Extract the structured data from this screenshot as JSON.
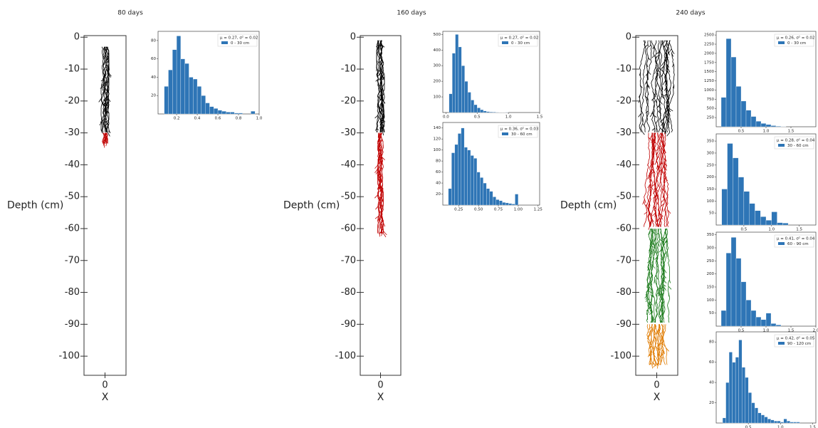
{
  "chart_data": [
    {
      "type": "root",
      "title": "80 days",
      "ylabel": "Depth (cm)",
      "xlabel": "X",
      "xlim": [
        -1,
        1
      ],
      "xticks": [
        0
      ],
      "ylim": [
        -106,
        0.5
      ],
      "yticks": [
        0,
        -10,
        -20,
        -30,
        -40,
        -50,
        -60,
        -70,
        -80,
        -90,
        -100
      ],
      "segments": [
        {
          "color": "#000000",
          "from": -3,
          "to": -30
        },
        {
          "color": "#c00000",
          "from": -30,
          "to": -34
        }
      ]
    },
    {
      "type": "histogram",
      "annotation": "μ = 0.27, σ² = 0.02",
      "xlim": [
        0.02,
        1.0
      ],
      "xticks": [
        0.2,
        0.4,
        0.6,
        0.8,
        {
          "value": 1,
          "label": "1.0"
        }
      ],
      "ylim": [
        0,
        90
      ],
      "yticks": [
        20,
        40,
        60,
        80
      ],
      "bins": [
        0.08,
        0.12,
        0.16,
        0.2,
        0.24,
        0.28,
        0.32,
        0.36,
        0.4,
        0.44,
        0.48,
        0.52,
        0.56,
        0.6,
        0.64,
        0.68,
        0.72,
        0.76,
        0.8,
        0.84,
        0.88,
        0.92,
        0.96
      ],
      "series": [
        {
          "name": "0 - 30 cm",
          "color": "#2e75b6",
          "values": [
            30,
            48,
            70,
            85,
            60,
            55,
            40,
            38,
            30,
            20,
            12,
            8,
            6,
            4,
            3,
            2,
            2,
            1,
            1,
            0,
            0,
            3
          ]
        }
      ]
    },
    {
      "type": "root",
      "title": "160 days",
      "ylabel": "Depth (cm)",
      "xlabel": "X",
      "xlim": [
        -1,
        1
      ],
      "xticks": [
        0
      ],
      "ylim": [
        -106,
        0.5
      ],
      "yticks": [
        0,
        -10,
        -20,
        -30,
        -40,
        -50,
        -60,
        -70,
        -80,
        -90,
        -100
      ],
      "segments": [
        {
          "color": "#000000",
          "from": -1,
          "to": -30
        },
        {
          "color": "#c00000",
          "from": -30,
          "to": -62
        }
      ]
    },
    {
      "type": "histogram",
      "annotation": "μ = 0.27, σ² = 0.02",
      "xlim": [
        -0.05,
        1.5
      ],
      "xticks": [
        {
          "value": 0,
          "label": "0.0"
        },
        0.5,
        {
          "value": 1,
          "label": "1.0"
        },
        1.5
      ],
      "ylim": [
        0,
        520
      ],
      "yticks": [
        100,
        200,
        300,
        400,
        500
      ],
      "bins": [
        0.05,
        0.1,
        0.15,
        0.2,
        0.25,
        0.3,
        0.35,
        0.4,
        0.45,
        0.5,
        0.55,
        0.6,
        0.65,
        0.7,
        0.75,
        0.8,
        0.85,
        0.9,
        0.95,
        1.0
      ],
      "series": [
        {
          "name": "0 - 30 cm",
          "color": "#2e75b6",
          "values": [
            120,
            380,
            500,
            420,
            300,
            200,
            130,
            80,
            50,
            30,
            18,
            10,
            6,
            4,
            3,
            2,
            1,
            1,
            2
          ]
        }
      ]
    },
    {
      "type": "histogram",
      "annotation": "μ = 0.36, σ² = 0.03",
      "xlim": [
        0.05,
        1.27
      ],
      "xticks": [
        0.25,
        {
          "value": 0.5,
          "label": "0.50"
        },
        0.75,
        {
          "value": 1,
          "label": "1.00"
        },
        1.25
      ],
      "ylim": [
        0,
        150
      ],
      "yticks": [
        20,
        40,
        60,
        80,
        100,
        120,
        140
      ],
      "bins": [
        0.12,
        0.16,
        0.2,
        0.24,
        0.28,
        0.32,
        0.36,
        0.4,
        0.44,
        0.48,
        0.52,
        0.56,
        0.6,
        0.64,
        0.68,
        0.72,
        0.76,
        0.8,
        0.84,
        0.88,
        0.92,
        0.96,
        1.0
      ],
      "series": [
        {
          "name": "30 - 60 cm",
          "color": "#2e75b6",
          "values": [
            30,
            95,
            110,
            130,
            140,
            105,
            100,
            90,
            85,
            60,
            50,
            40,
            30,
            25,
            15,
            10,
            8,
            5,
            4,
            3,
            2,
            20
          ]
        }
      ]
    },
    {
      "type": "root",
      "title": "240 days",
      "ylabel": "Depth (cm)",
      "xlabel": "X",
      "xlim": [
        -1,
        1
      ],
      "xticks": [
        0
      ],
      "ylim": [
        -106,
        0.5
      ],
      "yticks": [
        0,
        -10,
        -20,
        -30,
        -40,
        -50,
        -60,
        -70,
        -80,
        -90,
        -100
      ],
      "segments": [
        {
          "color": "#000000",
          "from": -1,
          "to": -30
        },
        {
          "color": "#c00000",
          "from": -30,
          "to": -60
        },
        {
          "color": "#1a7a1a",
          "from": -60,
          "to": -90
        },
        {
          "color": "#e07b00",
          "from": -90,
          "to": -103
        }
      ]
    },
    {
      "type": "histogram",
      "annotation": "μ = 0.26, σ² = 0.02",
      "xlim": [
        0,
        2.0
      ],
      "xticks": [
        0.5,
        {
          "value": 1,
          "label": "1.0"
        },
        1.5
      ],
      "ylim": [
        0,
        2600
      ],
      "yticks": [
        250,
        500,
        750,
        1000,
        1250,
        1500,
        1750,
        2000,
        2250,
        2500
      ],
      "bins": [
        0.1,
        0.2,
        0.3,
        0.4,
        0.5,
        0.6,
        0.7,
        0.8,
        0.9,
        1.0,
        1.1,
        1.2,
        1.3,
        1.4
      ],
      "series": [
        {
          "name": "0 - 30 cm",
          "color": "#2e75b6",
          "values": [
            800,
            2400,
            1900,
            1100,
            700,
            450,
            280,
            150,
            90,
            60,
            30,
            15,
            8
          ]
        }
      ]
    },
    {
      "type": "histogram",
      "annotation": "μ = 0.28, σ² = 0.04",
      "xlim": [
        0,
        1.8
      ],
      "xticks": [
        0.5,
        {
          "value": 1,
          "label": "1.0"
        },
        1.5
      ],
      "ylim": [
        0,
        380
      ],
      "yticks": [
        50,
        100,
        150,
        200,
        250,
        300,
        350
      ],
      "bins": [
        0.1,
        0.2,
        0.3,
        0.4,
        0.5,
        0.6,
        0.7,
        0.8,
        0.9,
        1.0,
        1.1,
        1.2,
        1.3
      ],
      "series": [
        {
          "name": "30 - 60 cm",
          "color": "#2e75b6",
          "values": [
            150,
            340,
            280,
            200,
            140,
            90,
            60,
            35,
            20,
            55,
            10,
            8
          ]
        }
      ]
    },
    {
      "type": "histogram",
      "annotation": "μ = 0.41, σ² = 0.04",
      "xlim": [
        0,
        2.0
      ],
      "xticks": [
        0.5,
        {
          "value": 1,
          "label": "1.0"
        },
        1.5,
        {
          "value": 2,
          "label": "2.0"
        }
      ],
      "ylim": [
        0,
        360
      ],
      "yticks": [
        50,
        100,
        150,
        200,
        250,
        300,
        350
      ],
      "bins": [
        0.1,
        0.2,
        0.3,
        0.4,
        0.5,
        0.6,
        0.7,
        0.8,
        0.9,
        1.0,
        1.1,
        1.2,
        1.3
      ],
      "series": [
        {
          "name": "60 - 90 cm",
          "color": "#2e75b6",
          "values": [
            60,
            280,
            340,
            260,
            170,
            100,
            60,
            35,
            25,
            50,
            10,
            5
          ]
        }
      ]
    },
    {
      "type": "histogram",
      "annotation": "μ = 0.42, σ² = 0.05",
      "xlim": [
        0,
        1.55
      ],
      "xticks": [
        0.5,
        {
          "value": 1,
          "label": "1.0"
        },
        1.5
      ],
      "ylim": [
        0,
        90
      ],
      "yticks": [
        20,
        40,
        60,
        80
      ],
      "bins": [
        0.1,
        0.15,
        0.2,
        0.25,
        0.3,
        0.35,
        0.4,
        0.45,
        0.5,
        0.55,
        0.6,
        0.65,
        0.7,
        0.75,
        0.8,
        0.85,
        0.9,
        0.95,
        1.0,
        1.05,
        1.1,
        1.15,
        1.2,
        1.25,
        1.3
      ],
      "series": [
        {
          "name": "90 - 120 cm",
          "color": "#2e75b6",
          "values": [
            5,
            40,
            70,
            60,
            65,
            82,
            55,
            45,
            30,
            20,
            15,
            10,
            8,
            6,
            4,
            3,
            2,
            2,
            1,
            4,
            2,
            1,
            1,
            1
          ]
        }
      ]
    }
  ]
}
